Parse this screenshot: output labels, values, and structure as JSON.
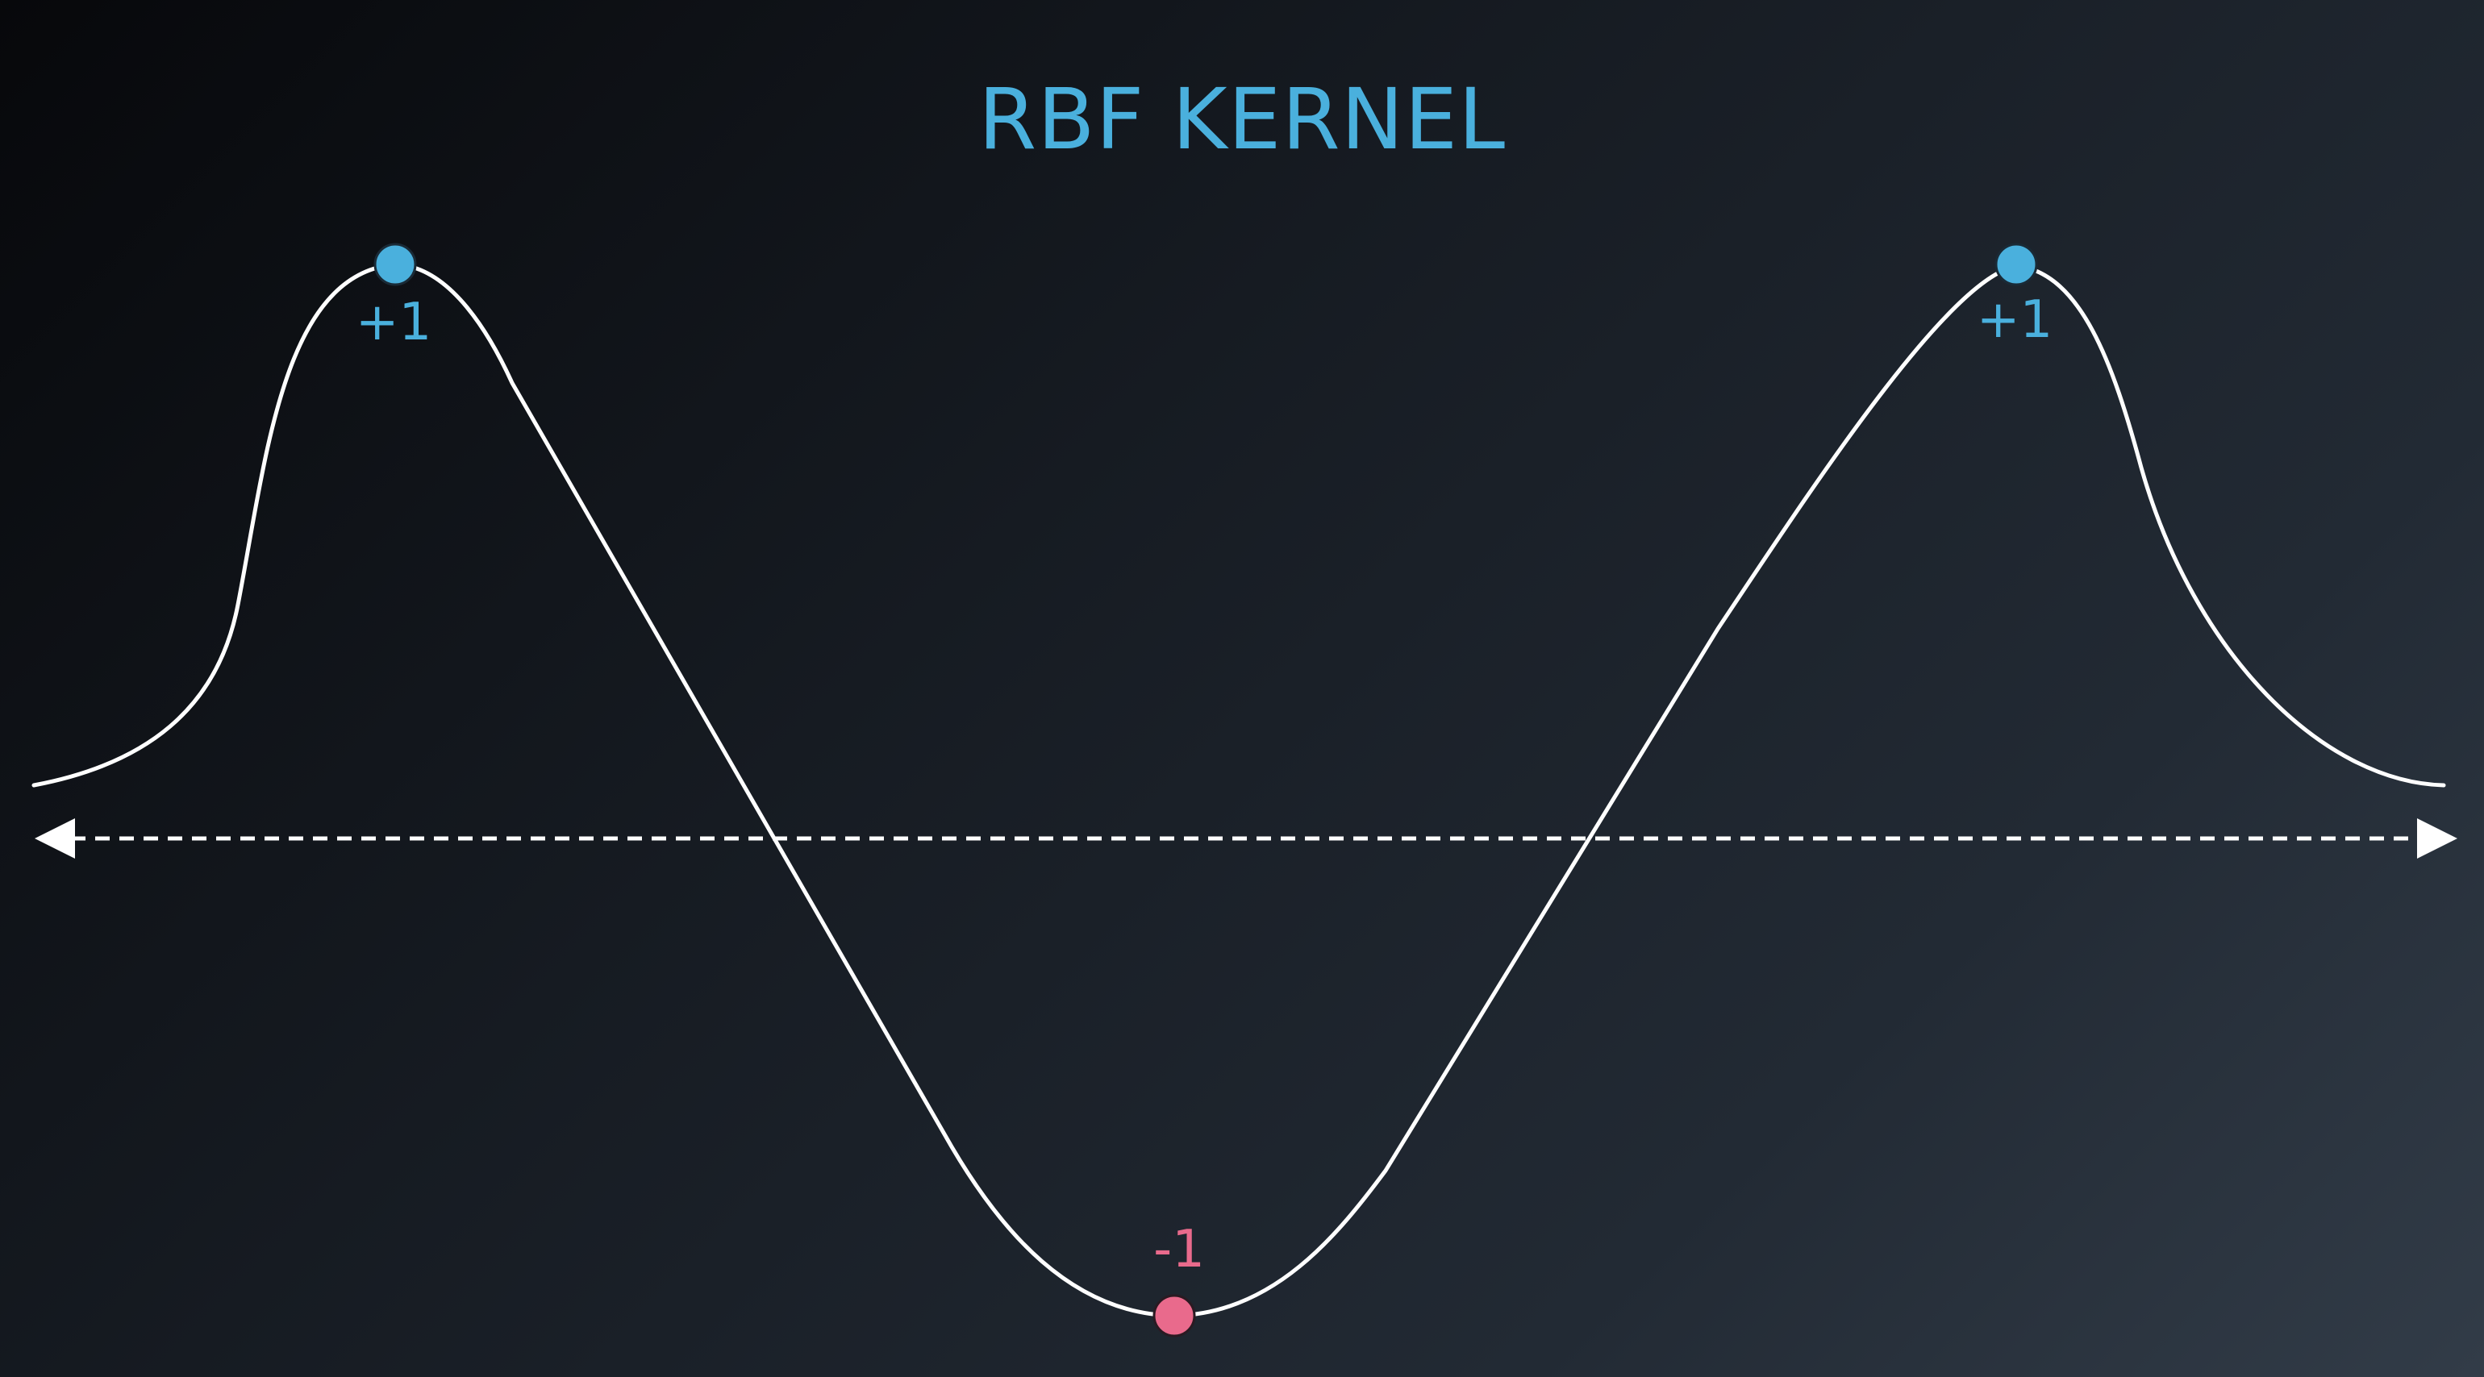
{
  "title": "RBF KERNEL",
  "points": [
    {
      "label": "+1",
      "class": "positive"
    },
    {
      "label": "-1",
      "class": "negative"
    },
    {
      "label": "+1",
      "class": "positive"
    }
  ],
  "colors": {
    "positive": "#4ab0dd",
    "negative": "#e96a8c",
    "curve": "#ffffff",
    "axis": "#ffffff"
  }
}
